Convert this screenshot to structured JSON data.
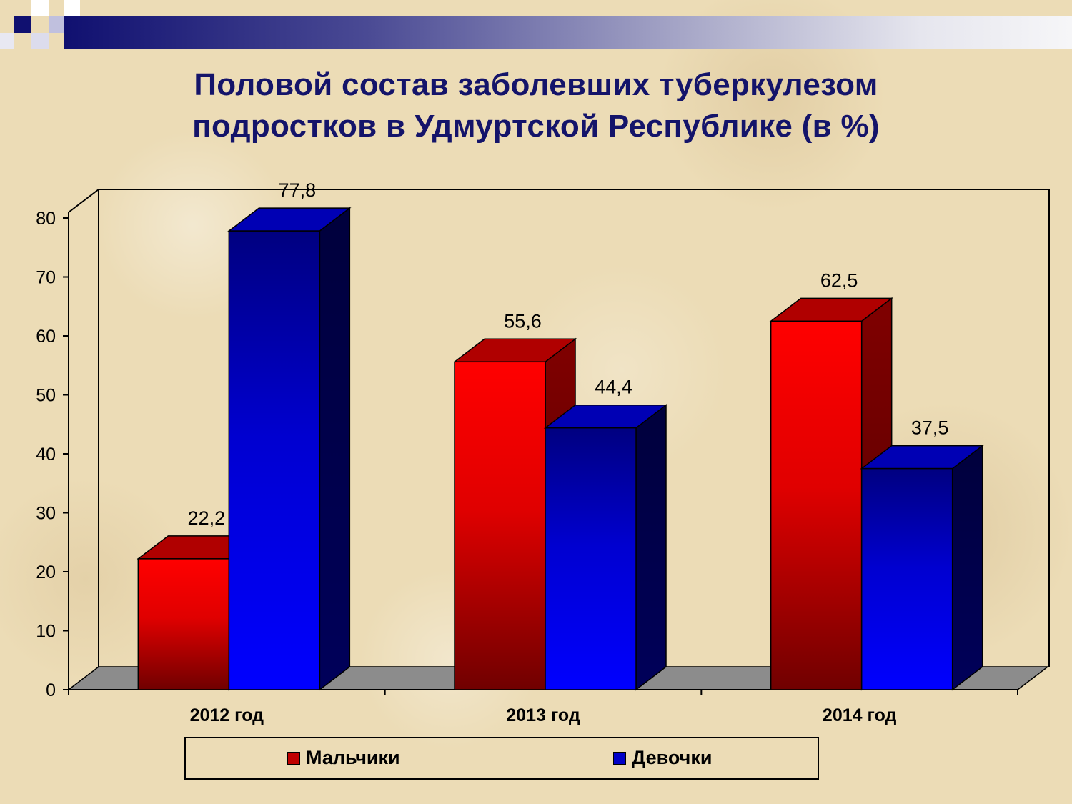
{
  "title_lines": [
    "Половой состав заболевших туберкулезом",
    "подростков в Удмуртской Республике (в %)"
  ],
  "colors": {
    "series_boys": "#ff0000",
    "series_girls": "#0000ff",
    "title": "#14146a",
    "floor": "#8c8c8c"
  },
  "chart_data": {
    "type": "bar",
    "title": "Половой состав заболевших туберкулезом подростков в Удмуртской Республике (в %)",
    "categories": [
      "2012 год",
      "2013 год",
      "2014 год"
    ],
    "series": [
      {
        "name": "Мальчики",
        "values": [
          22.2,
          55.6,
          62.5
        ],
        "labels": [
          "22,2",
          "55,6",
          "62,5"
        ]
      },
      {
        "name": "Девочки",
        "values": [
          77.8,
          44.4,
          37.5
        ],
        "labels": [
          "77,8",
          "44,4",
          "37,5"
        ]
      }
    ],
    "yticks": [
      0,
      10,
      20,
      30,
      40,
      50,
      60,
      70,
      80
    ],
    "ylim": [
      0,
      80
    ],
    "xlabel": "",
    "ylabel": "",
    "grid": false,
    "legend": "bottom",
    "style": "3d-clustered-column"
  }
}
